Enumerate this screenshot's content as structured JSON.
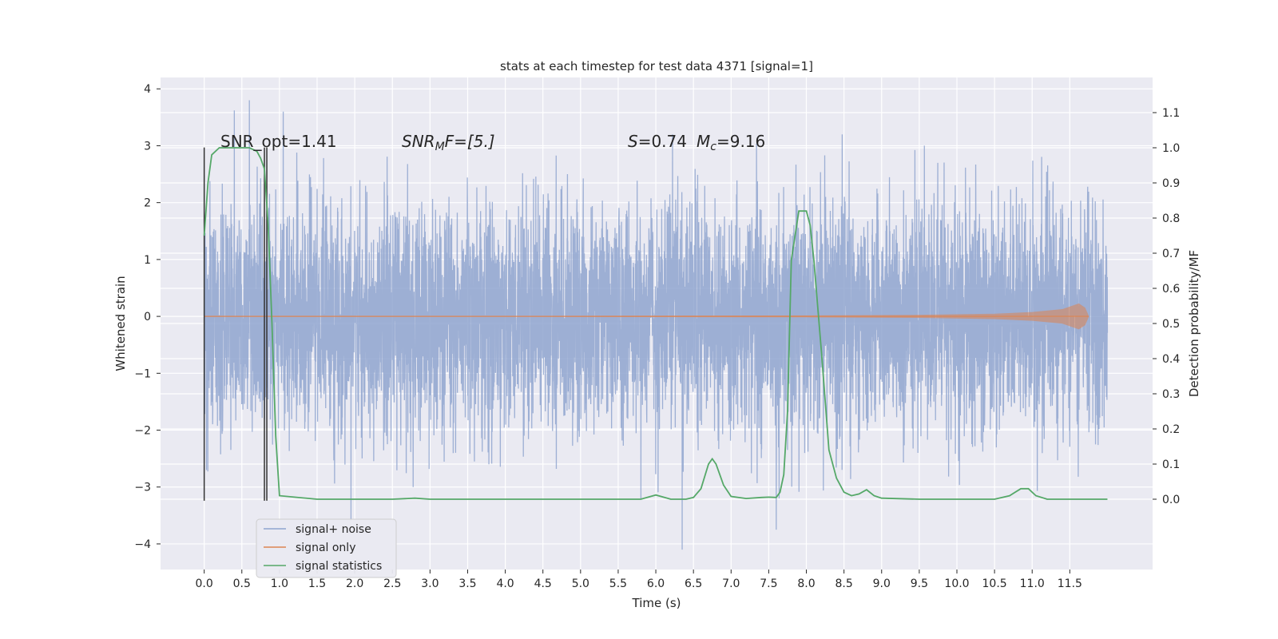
{
  "chart_data": {
    "type": "line",
    "title": "stats at each timestep for test data 4371 [signal=1]",
    "xlabel": "Time (s)",
    "ylabel": "Whitened strain",
    "ylabel_right": "Detection probability/MF",
    "xlim": [
      -0.58,
      12.6
    ],
    "ylim": [
      -4.45,
      4.2
    ],
    "ylim_right": [
      -0.2,
      1.2
    ],
    "x_ticks": [
      "0.0",
      "0.5",
      "1.0",
      "1.5",
      "2.0",
      "2.5",
      "3.0",
      "3.5",
      "4.0",
      "4.5",
      "5.0",
      "5.5",
      "6.0",
      "6.5",
      "7.0",
      "7.5",
      "8.0",
      "8.5",
      "9.0",
      "9.5",
      "10.0",
      "10.5",
      "11.0",
      "11.5"
    ],
    "y_ticks": [
      "4",
      "3",
      "2",
      "1",
      "0",
      "−1",
      "−2",
      "−3",
      "−4"
    ],
    "y_ticks_right": [
      "1.1",
      "1.0",
      "0.9",
      "0.8",
      "0.7",
      "0.6",
      "0.5",
      "0.4",
      "0.3",
      "0.2",
      "0.1",
      "0.0"
    ],
    "grid": true,
    "legend_position": "lower-left",
    "annotations": {
      "snr_opt": "SNR_opt=1.41",
      "snr_mf_name": "SNR",
      "snr_mf_sub": "M",
      "snr_mf_tail": "F=[5.]",
      "s_name": "S",
      "s_value": "=0.74",
      "mc_name": "M",
      "mc_sub": "c",
      "mc_value": "=9.16"
    },
    "vertical_markers": [
      0.0,
      0.8
    ],
    "series": [
      {
        "name": "signal+ noise",
        "color": "#8fa5cf",
        "x_range": [
          0.0,
          12.0
        ],
        "noise_band": [
          -1.3,
          1.3
        ],
        "peaks": [
          [
            0.4,
            3.62
          ],
          [
            0.6,
            3.8
          ],
          [
            1.05,
            3.6
          ],
          [
            6.35,
            -4.1
          ],
          [
            1.95,
            -3.6
          ],
          [
            7.6,
            -3.75
          ]
        ]
      },
      {
        "name": "signal only",
        "color": "#dd8452",
        "x": [
          0.0,
          2.0,
          4.0,
          6.0,
          8.0,
          9.5,
          10.5,
          11.0,
          11.4,
          11.62,
          11.7,
          11.75
        ],
        "y_amplitude": [
          0.0,
          0.0,
          0.0,
          0.005,
          0.01,
          0.02,
          0.04,
          0.07,
          0.12,
          0.22,
          0.15,
          0.0
        ]
      },
      {
        "name": "signal statistics",
        "color": "#55a868",
        "x": [
          0.0,
          0.05,
          0.1,
          0.2,
          0.3,
          0.5,
          0.6,
          0.7,
          0.75,
          0.8,
          0.85,
          0.9,
          0.95,
          1.0,
          1.5,
          2.0,
          2.5,
          2.8,
          3.0,
          3.5,
          4.0,
          4.5,
          5.0,
          5.5,
          5.8,
          6.0,
          6.2,
          6.4,
          6.5,
          6.6,
          6.7,
          6.75,
          6.8,
          6.85,
          6.9,
          7.0,
          7.2,
          7.4,
          7.5,
          7.6,
          7.65,
          7.7,
          7.75,
          7.8,
          7.9,
          8.0,
          8.05,
          8.1,
          8.2,
          8.3,
          8.4,
          8.5,
          8.6,
          8.7,
          8.8,
          8.9,
          9.0,
          9.5,
          10.0,
          10.5,
          10.7,
          10.85,
          10.95,
          11.05,
          11.2,
          11.5,
          12.0
        ],
        "y": [
          0.75,
          0.9,
          0.98,
          1.0,
          1.0,
          1.0,
          1.0,
          0.99,
          0.97,
          0.94,
          0.78,
          0.5,
          0.18,
          0.01,
          0.0,
          0.0,
          0.0,
          0.003,
          0.0,
          0.0,
          0.0,
          0.0,
          0.0,
          0.0,
          0.0,
          0.012,
          0.0,
          0.0,
          0.005,
          0.03,
          0.1,
          0.115,
          0.1,
          0.07,
          0.04,
          0.008,
          0.002,
          0.005,
          0.006,
          0.005,
          0.02,
          0.07,
          0.25,
          0.68,
          0.82,
          0.82,
          0.78,
          0.68,
          0.42,
          0.14,
          0.06,
          0.02,
          0.01,
          0.015,
          0.027,
          0.01,
          0.003,
          0.0,
          0.0,
          0.0,
          0.01,
          0.03,
          0.03,
          0.01,
          0.0,
          0.0,
          0.0
        ]
      }
    ]
  }
}
